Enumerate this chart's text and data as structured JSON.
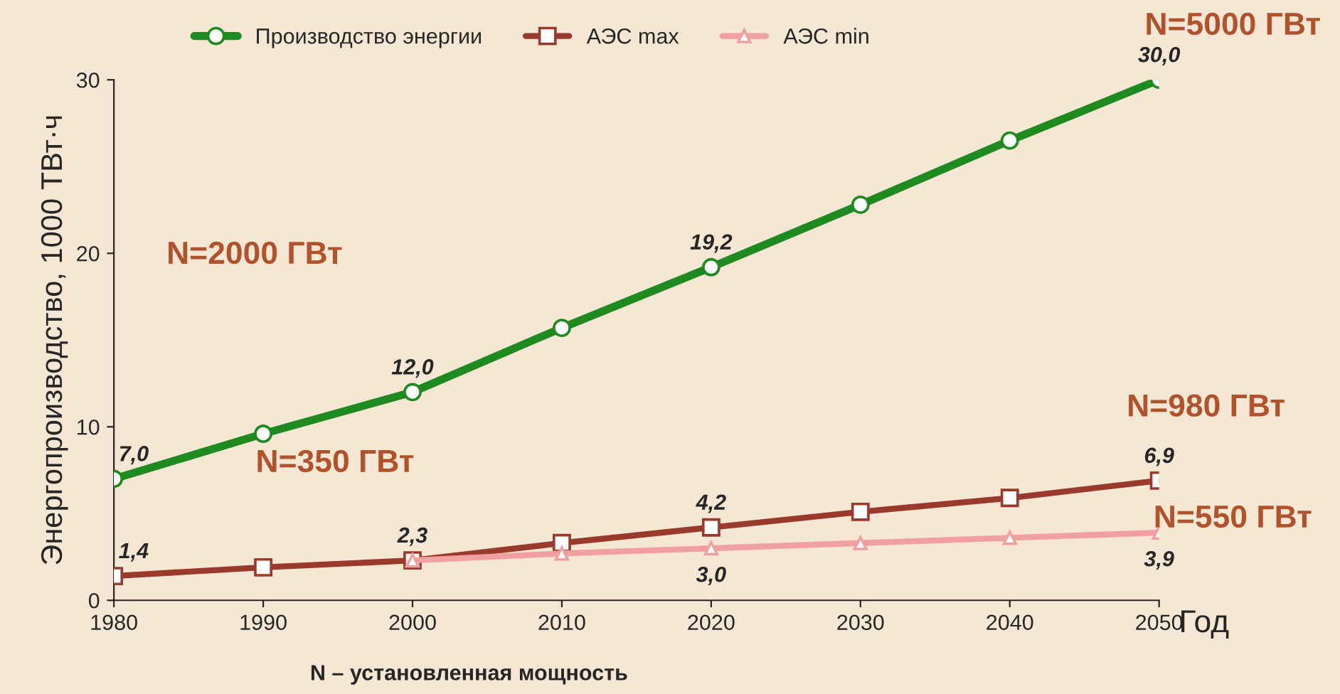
{
  "chart_data": {
    "type": "line",
    "ylabel": "Энергопроизводство, 1000 ТВт·ч",
    "xlabel": "Год",
    "x": [
      1980,
      1990,
      2000,
      2010,
      2020,
      2030,
      2040,
      2050
    ],
    "xlim": [
      1980,
      2050
    ],
    "xticks": [
      1980,
      1990,
      2000,
      2010,
      2020,
      2030,
      2040,
      2050
    ],
    "ylim": [
      0,
      30
    ],
    "yticks": [
      0,
      10,
      20,
      30
    ],
    "grid": false,
    "legend": "top",
    "series": [
      {
        "name": "Производство энергии",
        "color": "#1f8a1f",
        "marker": "circle",
        "values": [
          7.0,
          9.6,
          12.0,
          15.7,
          19.2,
          22.8,
          26.5,
          30.0
        ],
        "value_labels": [
          "7,0",
          null,
          "12,0",
          null,
          "19,2",
          null,
          null,
          "30,0"
        ]
      },
      {
        "name": "АЭС max",
        "color": "#9a3a2c",
        "marker": "square",
        "values": [
          1.4,
          1.9,
          2.3,
          3.3,
          4.2,
          5.1,
          5.9,
          6.9
        ],
        "value_labels": [
          "1,4",
          null,
          "2,3",
          null,
          "4,2",
          null,
          null,
          "6,9"
        ]
      },
      {
        "name": "АЭС min",
        "color": "#f0a0a0",
        "marker": "triangle",
        "values": [
          null,
          null,
          2.3,
          2.7,
          3.0,
          3.3,
          3.6,
          3.9
        ],
        "value_labels": [
          null,
          null,
          null,
          null,
          "3,0",
          null,
          null,
          "3,9"
        ]
      }
    ],
    "annotations": [
      "N=2000 ГВт",
      "N=350 ГВт",
      "N=5000 ГВт",
      "N=980 ГВт",
      "N=550 ГВт",
      "N – установленная мощность"
    ]
  }
}
